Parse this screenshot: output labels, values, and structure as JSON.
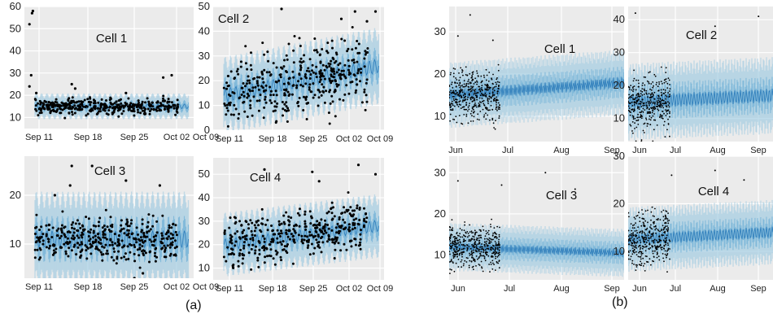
{
  "figure": {
    "captions": [
      "(a)",
      "(b)"
    ]
  },
  "colors": {
    "panel_bg": "#ebebeb",
    "grid": "#ffffff",
    "forecast_band_outer": "#9ecae1",
    "forecast_band_inner": "#6baed6",
    "forecast_line": "#2b7bba",
    "observed_points": "#000000"
  },
  "chart_data": [
    {
      "type": "scatter",
      "group": "(a)",
      "title": "Cell 1",
      "x_range": [
        "2017-09-09",
        "2017-10-11"
      ],
      "x_tick_labels": [
        "Sep 11",
        "Sep 18",
        "Sep 25",
        "Oct 02",
        "Oct 09"
      ],
      "ylim": [
        5,
        60
      ],
      "y_tick_labels": [
        "10",
        "20",
        "30",
        "40",
        "50",
        "60"
      ],
      "series": [
        {
          "kind": "observed",
          "x_start": "2017-09-11",
          "x_end": "2017-10-08",
          "level": 15,
          "trend_end": 15,
          "spread": 2.5,
          "outliers": [
            [
              0.05,
              58
            ],
            [
              0.045,
              57
            ],
            [
              0.03,
              52
            ],
            [
              0.04,
              29
            ],
            [
              0.03,
              24
            ],
            [
              0.07,
              21
            ],
            [
              0.28,
              25
            ],
            [
              0.3,
              23
            ],
            [
              0.82,
              28
            ],
            [
              0.87,
              29
            ],
            [
              0.6,
              21
            ]
          ]
        },
        {
          "kind": "forecast",
          "x_start": "2017-09-11",
          "x_end": "2017-10-10",
          "level": 15,
          "trend_end": 15,
          "band": 3
        }
      ]
    },
    {
      "type": "scatter",
      "group": "(a)",
      "title": "Cell 2",
      "x_range": [
        "2017-09-09",
        "2017-10-11"
      ],
      "x_tick_labels": [
        "Sep 11",
        "Sep 18",
        "Sep 25",
        "Oct 02",
        "Oct 09"
      ],
      "ylim": [
        0,
        50
      ],
      "y_tick_labels": [
        "0",
        "10",
        "20",
        "30",
        "40",
        "50"
      ],
      "series": [
        {
          "kind": "observed",
          "x_start": "2017-09-11",
          "x_end": "2017-10-08",
          "level": 14,
          "trend_end": 25,
          "spread": 9,
          "outliers": [
            [
              0.4,
              49
            ],
            [
              0.83,
              48
            ],
            [
              0.95,
              48
            ],
            [
              0.9,
              44
            ],
            [
              0.75,
              45
            ]
          ]
        },
        {
          "kind": "forecast",
          "x_start": "2017-09-11",
          "x_end": "2017-10-10",
          "level": 14,
          "trend_end": 26,
          "band": 8
        }
      ]
    },
    {
      "type": "scatter",
      "group": "(a)",
      "title": "Cell 3",
      "x_range": [
        "2017-09-09",
        "2017-10-11"
      ],
      "x_tick_labels": [
        "Sep 11",
        "Sep 18",
        "Sep 25",
        "Oct 02",
        "Oct 09"
      ],
      "ylim": [
        3,
        28
      ],
      "y_tick_labels": [
        "10",
        "20"
      ],
      "series": [
        {
          "kind": "observed",
          "x_start": "2017-09-11",
          "x_end": "2017-10-08",
          "level": 11,
          "trend_end": 11,
          "spread": 3,
          "outliers": [
            [
              0.28,
              26
            ],
            [
              0.27,
              22
            ],
            [
              0.4,
              26
            ],
            [
              0.6,
              23
            ],
            [
              0.8,
              22
            ],
            [
              0.18,
              20
            ],
            [
              0.65,
              3
            ],
            [
              0.7,
              4
            ]
          ]
        },
        {
          "kind": "forecast",
          "x_start": "2017-09-11",
          "x_end": "2017-10-10",
          "level": 11,
          "trend_end": 11,
          "band": 5
        }
      ]
    },
    {
      "type": "scatter",
      "group": "(a)",
      "title": "Cell 4",
      "x_range": [
        "2017-09-09",
        "2017-10-11"
      ],
      "x_tick_labels": [
        "Sep 11",
        "Sep 18",
        "Sep 25",
        "Oct 02",
        "Oct 09"
      ],
      "ylim": [
        5,
        57
      ],
      "y_tick_labels": [
        "10",
        "20",
        "30",
        "40",
        "50"
      ],
      "series": [
        {
          "kind": "observed",
          "x_start": "2017-09-11",
          "x_end": "2017-10-08",
          "level": 20,
          "trend_end": 28,
          "spread": 7,
          "outliers": [
            [
              0.85,
              54
            ],
            [
              0.3,
              52
            ],
            [
              0.58,
              51
            ],
            [
              0.95,
              50
            ],
            [
              0.62,
              47
            ]
          ]
        },
        {
          "kind": "forecast",
          "x_start": "2017-09-11",
          "x_end": "2017-10-10",
          "level": 20,
          "trend_end": 28,
          "band": 7
        }
      ]
    },
    {
      "type": "scatter",
      "group": "(b)",
      "title": "Cell 1",
      "x_range": [
        "2017-05-25",
        "2017-09-30"
      ],
      "x_tick_labels": [
        "Jun",
        "Jul",
        "Aug",
        "Sep"
      ],
      "ylim": [
        4,
        36
      ],
      "y_tick_labels": [
        "10",
        "20",
        "30"
      ],
      "series": [
        {
          "kind": "observed",
          "x_start": "2017-05-25",
          "x_end": "2017-07-01",
          "level": 15,
          "trend_end": 15,
          "spread": 4,
          "outliers": [
            [
              0.12,
              34
            ],
            [
              0.05,
              29
            ],
            [
              0.25,
              28
            ]
          ]
        },
        {
          "kind": "forecast",
          "x_start": "2017-05-25",
          "x_end": "2017-09-30",
          "level": 15,
          "trend_end": 18,
          "band": 4
        }
      ]
    },
    {
      "type": "scatter",
      "group": "(b)",
      "title": "Cell 2",
      "x_range": [
        "2017-05-25",
        "2017-09-30"
      ],
      "x_tick_labels": [
        "Jun",
        "Jul",
        "Aug",
        "Sep"
      ],
      "ylim": [
        3,
        44
      ],
      "y_tick_labels": [
        "10",
        "20",
        "30",
        "40"
      ],
      "series": [
        {
          "kind": "observed",
          "x_start": "2017-05-25",
          "x_end": "2017-07-01",
          "level": 14,
          "trend_end": 15,
          "spread": 6,
          "outliers": [
            [
              0.05,
              42
            ],
            [
              0.9,
              41
            ],
            [
              0.6,
              38
            ]
          ]
        },
        {
          "kind": "forecast",
          "x_start": "2017-05-25",
          "x_end": "2017-09-30",
          "level": 15,
          "trend_end": 17,
          "band": 6
        }
      ]
    },
    {
      "type": "scatter",
      "group": "(b)",
      "title": "Cell 3",
      "x_range": [
        "2017-05-25",
        "2017-09-30"
      ],
      "x_tick_labels": [
        "Jun",
        "Jul",
        "Aug",
        "Sep"
      ],
      "ylim": [
        4,
        34
      ],
      "y_tick_labels": [
        "10",
        "20",
        "30"
      ],
      "series": [
        {
          "kind": "observed",
          "x_start": "2017-05-25",
          "x_end": "2017-07-01",
          "level": 12,
          "trend_end": 12,
          "spread": 3.5,
          "outliers": [
            [
              0.05,
              28
            ],
            [
              0.3,
              27
            ],
            [
              0.55,
              30
            ],
            [
              0.72,
              26
            ]
          ]
        },
        {
          "kind": "forecast",
          "x_start": "2017-05-25",
          "x_end": "2017-09-30",
          "level": 12,
          "trend_end": 10.5,
          "band": 3
        }
      ]
    },
    {
      "type": "scatter",
      "group": "(b)",
      "title": "Cell 4",
      "x_range": [
        "2017-05-25",
        "2017-09-30"
      ],
      "x_tick_labels": [
        "Jun",
        "Jul",
        "Aug",
        "Sep"
      ],
      "ylim": [
        4,
        30
      ],
      "y_tick_labels": [
        "10",
        "20",
        "30"
      ],
      "series": [
        {
          "kind": "observed",
          "x_start": "2017-05-25",
          "x_end": "2017-07-01",
          "level": 12,
          "trend_end": 13,
          "spread": 4,
          "outliers": [
            [
              0.3,
              26
            ],
            [
              0.6,
              27
            ],
            [
              0.8,
              25
            ]
          ]
        },
        {
          "kind": "forecast",
          "x_start": "2017-05-25",
          "x_end": "2017-09-30",
          "level": 12.5,
          "trend_end": 14,
          "band": 3.5
        }
      ]
    }
  ]
}
